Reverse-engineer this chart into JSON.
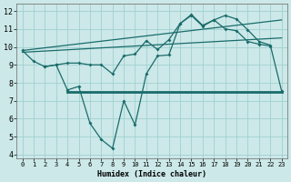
{
  "xlabel": "Humidex (Indice chaleur)",
  "xlim": [
    -0.5,
    23.5
  ],
  "ylim": [
    3.8,
    12.4
  ],
  "yticks": [
    4,
    5,
    6,
    7,
    8,
    9,
    10,
    11,
    12
  ],
  "xticks": [
    0,
    1,
    2,
    3,
    4,
    5,
    6,
    7,
    8,
    9,
    10,
    11,
    12,
    13,
    14,
    15,
    16,
    17,
    18,
    19,
    20,
    21,
    22,
    23
  ],
  "bg_color": "#cce8e8",
  "grid_color": "#99cccc",
  "line_color": "#1a6b6b",
  "line_main": {
    "x": [
      0,
      1,
      2,
      3,
      4,
      5,
      6,
      7,
      8,
      9,
      10,
      11,
      12,
      13,
      14,
      15,
      16,
      17,
      18,
      19,
      20,
      21,
      22
    ],
    "y": [
      9.8,
      9.2,
      8.9,
      9.0,
      9.1,
      9.1,
      9.0,
      9.0,
      8.5,
      9.5,
      9.6,
      10.35,
      9.85,
      10.4,
      11.3,
      11.8,
      11.2,
      11.5,
      11.0,
      10.9,
      10.3,
      10.15,
      10.05
    ]
  },
  "line_dip": {
    "x": [
      2,
      3,
      4,
      5,
      6,
      7,
      8,
      9,
      10,
      11,
      12,
      13,
      14,
      15,
      16,
      17,
      18,
      19,
      20,
      21,
      22,
      23
    ],
    "y": [
      8.9,
      9.0,
      7.6,
      7.8,
      5.75,
      4.85,
      4.35,
      7.0,
      5.65,
      8.5,
      9.5,
      9.55,
      11.3,
      11.75,
      11.15,
      11.5,
      11.75,
      11.55,
      10.95,
      10.3,
      10.1,
      7.55
    ]
  },
  "line_trend1": {
    "x": [
      0,
      23
    ],
    "y": [
      9.8,
      11.5
    ]
  },
  "line_trend2": {
    "x": [
      0,
      23
    ],
    "y": [
      9.7,
      10.5
    ]
  },
  "line_flat": {
    "x": [
      4,
      23
    ],
    "y": [
      7.5,
      7.5
    ],
    "linewidth": 2.0
  }
}
